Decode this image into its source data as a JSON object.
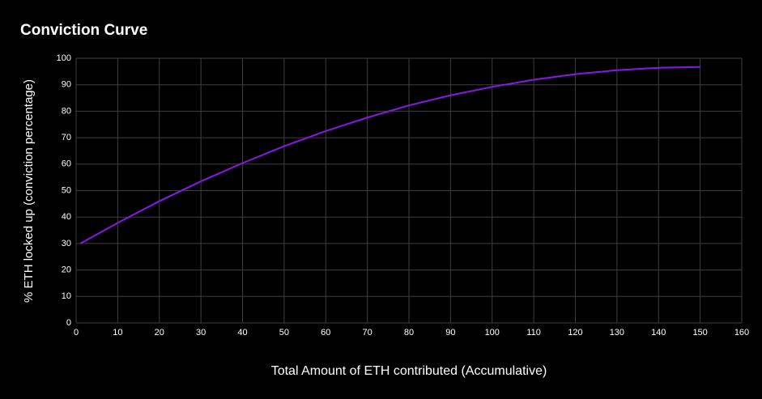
{
  "chart_data": {
    "type": "line",
    "title": "Conviction Curve",
    "x_label": "Total Amount of ETH contributed (Accumulative)",
    "y_label": "% ETH locked up (conviction percentage)",
    "x": [
      1,
      10,
      20,
      30,
      40,
      50,
      60,
      70,
      80,
      90,
      100,
      110,
      120,
      130,
      140,
      150
    ],
    "series": [
      {
        "name": "Conviction",
        "color": "#8b17e6",
        "values": [
          30,
          37.8,
          46,
          53.5,
          60.4,
          66.8,
          72.5,
          77.6,
          82.2,
          86,
          89.2,
          91.9,
          94,
          95.5,
          96.4,
          96.7
        ]
      }
    ],
    "xlim": [
      0,
      160
    ],
    "xticks": [
      0,
      10,
      20,
      30,
      40,
      50,
      60,
      70,
      80,
      90,
      100,
      110,
      120,
      130,
      140,
      150,
      160
    ],
    "ylim": [
      0,
      100
    ],
    "yticks": [
      0,
      10,
      20,
      30,
      40,
      50,
      60,
      70,
      80,
      90,
      100
    ],
    "grid": true
  }
}
